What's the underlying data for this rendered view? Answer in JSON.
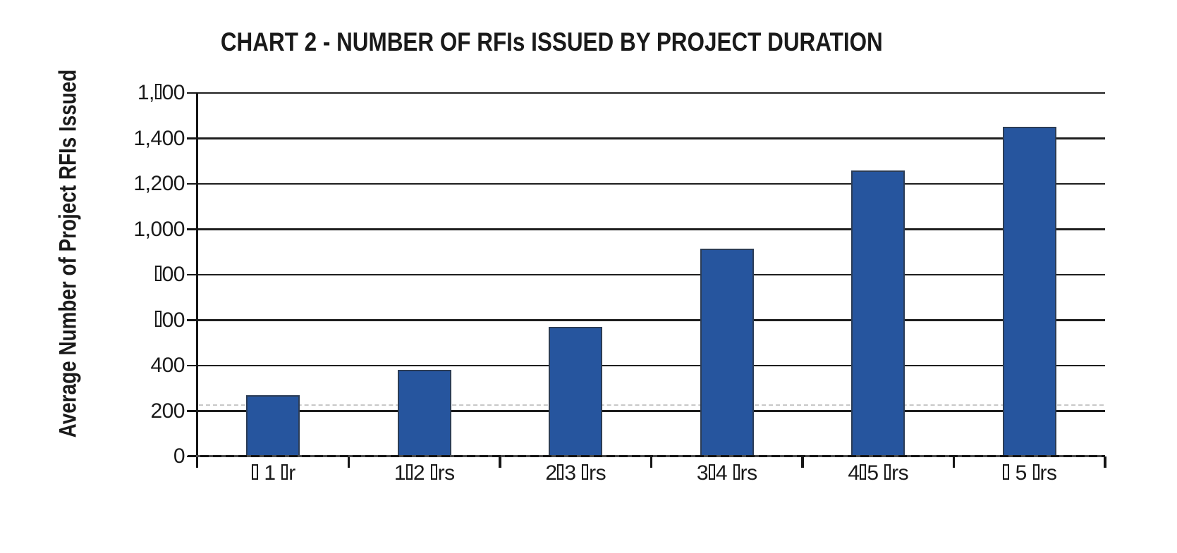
{
  "chart_data": {
    "type": "bar",
    "title": "CHART 2 - NUMBER OF RFIs ISSUED BY PROJECT DURATION",
    "ylabel": "Average Number of Project RFIs Issued",
    "xlabel": "",
    "categories": [
      "▯ 1 ▯r",
      "1▯2 ▯rs",
      "2▯3 ▯rs",
      "3▯4 ▯rs",
      "4▯5 ▯rs",
      "▯ 5 ▯rs"
    ],
    "values": [
      270,
      380,
      570,
      915,
      1260,
      1450
    ],
    "ylim": [
      0,
      1600
    ],
    "yticks": [
      {
        "label": "0",
        "value": 0
      },
      {
        "label": "200",
        "value": 200
      },
      {
        "label": "400",
        "value": 400
      },
      {
        "label": "▯00",
        "value": 600
      },
      {
        "label": "▯00",
        "value": 800
      },
      {
        "label": "1,000",
        "value": 1000
      },
      {
        "label": "1,200",
        "value": 1200
      },
      {
        "label": "1,400",
        "value": 1400
      },
      {
        "label": "1,▯00",
        "value": 1600
      }
    ],
    "grid": "solid horizontal lines every 200, faint dashed artifact line above the 200 line",
    "legend": "none",
    "missing_glyph_char": "▯",
    "colors": {
      "bar_fill": "#26559e",
      "bar_border": "#2b3c55",
      "axis": "#151515",
      "gridline": "#1e1e1e",
      "text": "#1a1a1a",
      "ghost_dash": "#c8c8c8",
      "background": "#ffffff"
    }
  }
}
